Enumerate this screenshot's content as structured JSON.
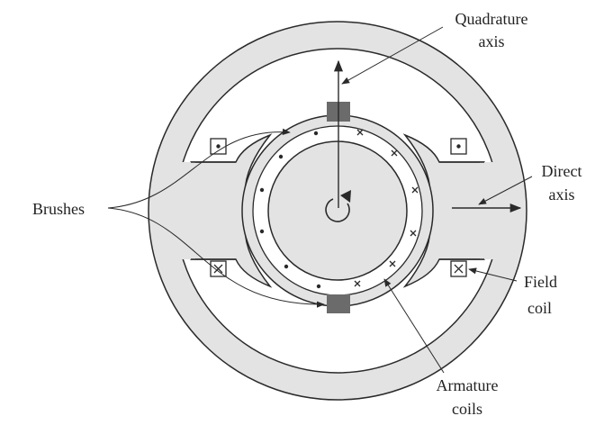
{
  "labels": {
    "quadrature_line1": "Quadrature",
    "quadrature_line2": "axis",
    "direct_line1": "Direct",
    "direct_line2": "axis",
    "brushes": "Brushes",
    "field_line1": "Field",
    "field_line2": "coil",
    "armature_line1": "Armature",
    "armature_line2": "coils"
  },
  "symbols": {
    "dot": "•",
    "cross": "×"
  },
  "colors": {
    "fill_gray": "#e3e3e3",
    "brush_dark": "#6b6b6b",
    "stroke": "#2a2a2a"
  }
}
